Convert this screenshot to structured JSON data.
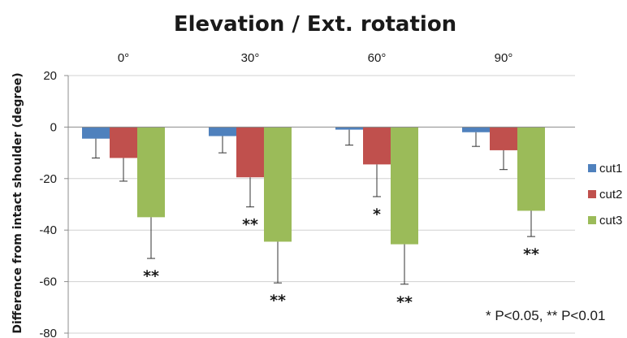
{
  "chart_data": {
    "type": "bar",
    "title": "Elevation / Ext. rotation",
    "ylabel": "Difference from intact shoulder (degree)",
    "xlabel": "",
    "categories": [
      "0°",
      "30°",
      "60°",
      "90°"
    ],
    "category_axis_position": "top",
    "ylim": [
      -80,
      20
    ],
    "yticks": [
      20,
      0,
      -20,
      -40,
      -60,
      -80
    ],
    "grid": true,
    "legend_position": "right",
    "series": [
      {
        "name": "cut1",
        "color": "#4f81bd",
        "values": [
          -4.5,
          -3.5,
          -1,
          -2
        ],
        "error_low": [
          -12,
          -10,
          -7,
          -7.5
        ]
      },
      {
        "name": "cut2",
        "color": "#c0504d",
        "values": [
          -12,
          -19.5,
          -14.5,
          -9
        ],
        "error_low": [
          -21,
          -31,
          -27,
          -16.5
        ]
      },
      {
        "name": "cut3",
        "color": "#9bbb59",
        "values": [
          -35,
          -44.5,
          -45.5,
          -32.5
        ],
        "error_low": [
          -51,
          -60.5,
          -61,
          -42.5
        ]
      }
    ],
    "annotations": [
      {
        "text": "**",
        "category": "0°",
        "series": "cut3"
      },
      {
        "text": "**",
        "category": "30°",
        "series": "cut2"
      },
      {
        "text": "**",
        "category": "30°",
        "series": "cut3"
      },
      {
        "text": "*",
        "category": "60°",
        "series": "cut2"
      },
      {
        "text": "**",
        "category": "60°",
        "series": "cut3"
      },
      {
        "text": "**",
        "category": "90°",
        "series": "cut3"
      }
    ],
    "note": "* P<0.05, ** P<0.01"
  }
}
